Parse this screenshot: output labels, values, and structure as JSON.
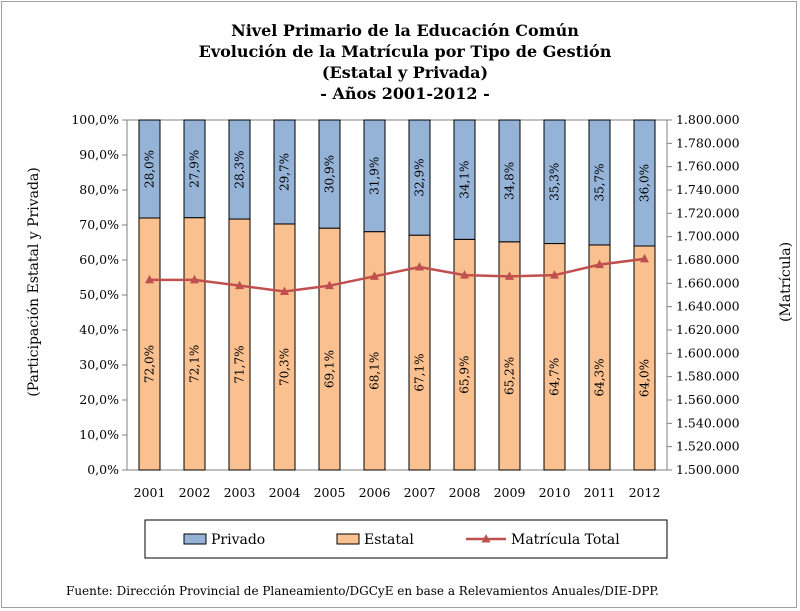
{
  "chart_data": {
    "type": "bar",
    "stacked": true,
    "title": [
      "Nivel Primario de la Educación Común",
      "Evolución de la Matrícula por Tipo de Gestión",
      "(Estatal y Privada)",
      "- Años 2001-2012 -"
    ],
    "ylabel": "(Participación Estatal y Privada)",
    "y2label": "(Matrícula)",
    "categories": [
      "2001",
      "2002",
      "2003",
      "2004",
      "2005",
      "2006",
      "2007",
      "2008",
      "2009",
      "2010",
      "2011",
      "2012"
    ],
    "ylim": [
      0,
      100
    ],
    "y_ticks": [
      "0,0%",
      "10,0%",
      "20,0%",
      "30,0%",
      "40,0%",
      "50,0%",
      "60,0%",
      "70,0%",
      "80,0%",
      "90,0%",
      "100,0%"
    ],
    "y2lim": [
      1500000,
      1800000
    ],
    "y2_ticks": [
      "1.500.000",
      "1.520.000",
      "1.540.000",
      "1.560.000",
      "1.580.000",
      "1.600.000",
      "1.620.000",
      "1.640.000",
      "1.660.000",
      "1.680.000",
      "1.700.000",
      "1.720.000",
      "1.740.000",
      "1.760.000",
      "1.780.000",
      "1.800.000"
    ],
    "series": [
      {
        "name": "Estatal",
        "color": "#fac090",
        "values": [
          72.0,
          72.1,
          71.7,
          70.3,
          69.1,
          68.1,
          67.1,
          65.9,
          65.2,
          64.7,
          64.3,
          64.0
        ],
        "labels": [
          "72,0%",
          "72,1%",
          "71,7%",
          "70,3%",
          "69,1%",
          "68,1%",
          "67,1%",
          "65,9%",
          "65,2%",
          "64,7%",
          "64,3%",
          "64,0%"
        ]
      },
      {
        "name": "Privado",
        "color": "#95b3d7",
        "values": [
          28.0,
          27.9,
          28.3,
          29.7,
          30.9,
          31.9,
          32.9,
          34.1,
          34.8,
          35.3,
          35.7,
          36.0
        ],
        "labels": [
          "28,0%",
          "27,9%",
          "28,3%",
          "29,7%",
          "30,9%",
          "31,9%",
          "32,9%",
          "34,1%",
          "34,8%",
          "35,3%",
          "35,7%",
          "36,0%"
        ]
      },
      {
        "name": "Matrícula Total",
        "type": "line",
        "axis": "secondary",
        "color": "#c0504d",
        "values": [
          1663000,
          1663000,
          1658000,
          1653000,
          1658000,
          1666000,
          1674000,
          1667000,
          1666000,
          1667000,
          1676000,
          1681000
        ]
      }
    ],
    "legend": {
      "position": "bottom",
      "items": [
        "Privado",
        "Estatal",
        "Matrícula Total"
      ]
    }
  },
  "source": "Fuente: Dirección Provincial de Planeamiento/DGCyE en base a Relevamientos Anuales/DIE-DPP."
}
